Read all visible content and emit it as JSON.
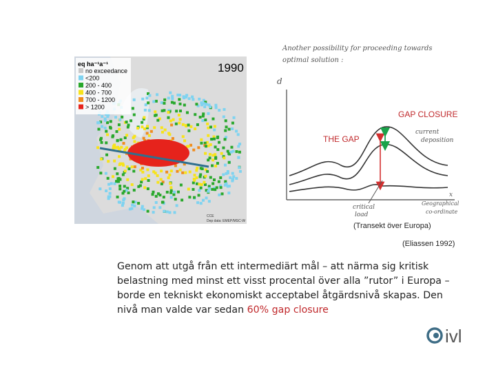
{
  "map": {
    "year": "1990",
    "unit": "eq ha⁻¹a⁻¹",
    "legend": [
      "no exceedance",
      "<200",
      "200 - 400",
      "400 - 700",
      "700 - 1200",
      "> 1200"
    ],
    "source": "Dep data: EMEP/MSC-W",
    "credit": "CCE"
  },
  "graph": {
    "note": [
      "Another possibility for proceeding towards",
      "optimal solution :"
    ],
    "y_label": "d",
    "x_label": "x",
    "gap_closure": "GAP CLOSURE",
    "the_gap": "THE GAP",
    "current": [
      "current",
      "deposition"
    ],
    "critical": [
      "critical",
      "load"
    ],
    "geo": [
      "Geographical",
      "co-ordinate"
    ],
    "transect": "(Transekt över Europa)",
    "citation": "(Eliassen 1992)"
  },
  "body": {
    "text": "Genom att utgå från ett intermediärt mål – att närma sig kritisk belastning med minst ett visst procental över alla ”rutor” i Europa – borde en tekniskt ekonomiskt acceptabel åtgärdsnivå skapas. Den nivå man valde var sedan ",
    "highlight": "60% gap closure"
  },
  "logo": "ivl"
}
